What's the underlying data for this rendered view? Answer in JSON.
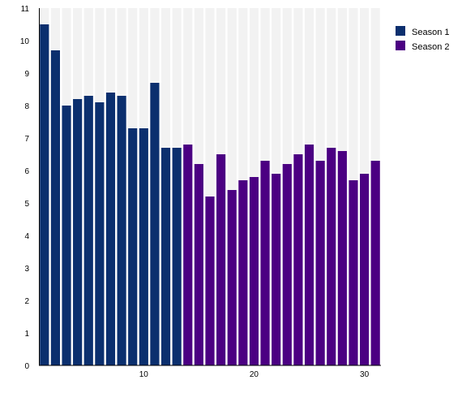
{
  "chart_data": {
    "type": "bar",
    "title": "",
    "xlabel": "",
    "ylabel": "",
    "ylim": [
      0,
      11
    ],
    "xlim": [
      0.5,
      31.5
    ],
    "grid": "vertical bands",
    "legend_position": "top-right",
    "x_ticks": [
      10,
      20,
      30
    ],
    "y_ticks": [
      0,
      1,
      2,
      3,
      4,
      5,
      6,
      7,
      8,
      9,
      10,
      11
    ],
    "series": [
      {
        "name": "Season 1",
        "color": "#0b2f6e",
        "x": [
          1,
          2,
          3,
          4,
          5,
          6,
          7,
          8,
          9,
          10,
          11,
          12,
          13
        ],
        "values": [
          10.5,
          9.7,
          8.0,
          8.2,
          8.3,
          8.1,
          8.4,
          8.3,
          7.3,
          7.3,
          8.7,
          6.7,
          6.7
        ]
      },
      {
        "name": "Season 2",
        "color": "#4b0082",
        "x": [
          14,
          15,
          16,
          17,
          18,
          19,
          20,
          21,
          22,
          23,
          24,
          25,
          26,
          27,
          28,
          29,
          30,
          31
        ],
        "values": [
          6.8,
          6.2,
          5.2,
          6.5,
          5.4,
          5.7,
          5.8,
          6.3,
          5.9,
          6.2,
          6.5,
          6.8,
          6.3,
          6.7,
          6.6,
          5.7,
          5.9,
          6.3
        ]
      }
    ]
  },
  "colors": {
    "band": "#f2f2f2",
    "axis": "#000000"
  }
}
